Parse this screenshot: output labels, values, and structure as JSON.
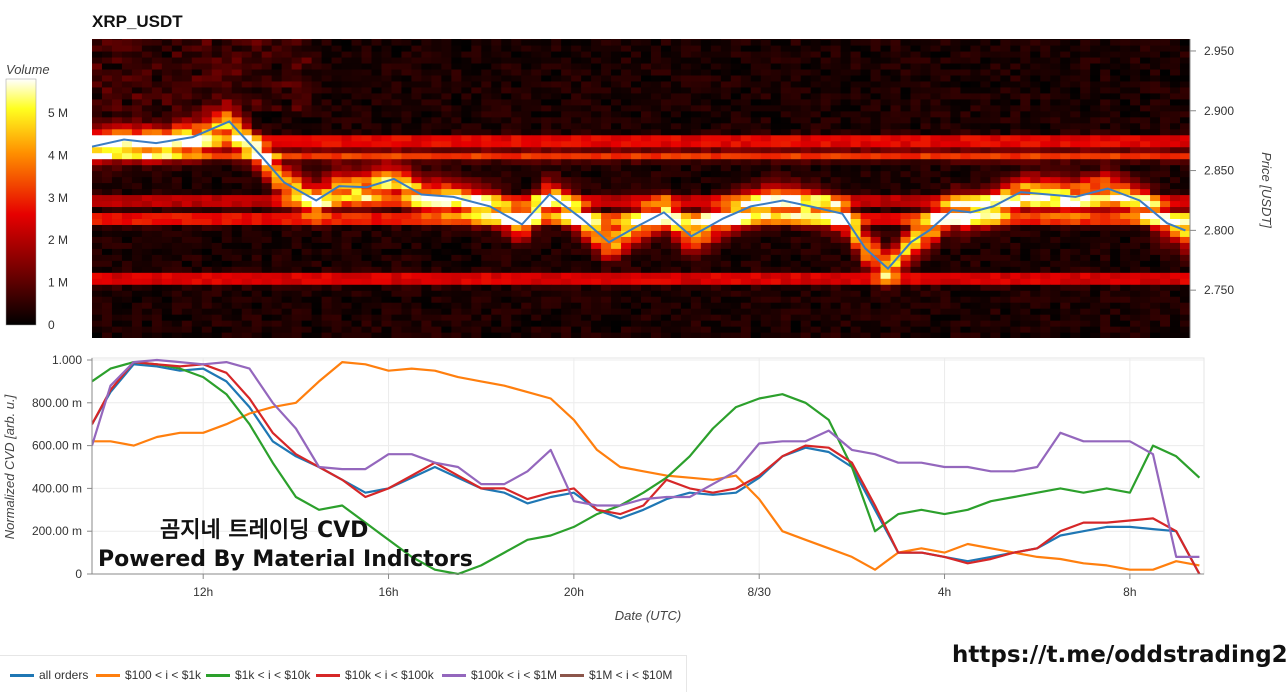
{
  "title": "XRP_USDT",
  "colorbar": {
    "label": "Volume",
    "ticks": [
      "5 M",
      "4 M",
      "3 M",
      "2 M",
      "1 M",
      "0"
    ]
  },
  "price_axis": {
    "label": "Price [USDT]",
    "ticks": [
      "2.950",
      "2.900",
      "2.850",
      "2.800",
      "2.750"
    ]
  },
  "cvd_axis": {
    "label": "Normalized CVD [arb. u.]",
    "ticks": [
      "1.000",
      "800.00 m",
      "600.00 m",
      "400.00 m",
      "200.00 m",
      "0"
    ]
  },
  "x_axis": {
    "label": "Date (UTC)",
    "ticks": [
      "12h",
      "16h",
      "20h",
      "8/30",
      "4h",
      "8h"
    ]
  },
  "overlay": {
    "line1": "곰지네 트레이딩 CVD",
    "line2": "Powered By Material Indictors"
  },
  "link": "https://t.me/oddstrading2",
  "legend": [
    {
      "label": "all orders",
      "color": "#1f77b4"
    },
    {
      "label": "$100 < i < $1k",
      "color": "#ff7f0e"
    },
    {
      "label": "$1k < i < $10k",
      "color": "#2ca02c"
    },
    {
      "label": "$10k < i < $100k",
      "color": "#d62728"
    },
    {
      "label": "$100k < i < $1M",
      "color": "#9467bd"
    },
    {
      "label": "$1M < i < $10M",
      "color": "#8c564b"
    }
  ],
  "chart_data": [
    {
      "type": "heatmap",
      "title": "XRP_USDT",
      "ylabel": "Price [USDT]",
      "xlabel": "",
      "ylim": [
        2.71,
        2.96
      ],
      "colorbar_label": "Volume",
      "colorbar_range": [
        0,
        5800000
      ],
      "series": [
        {
          "name": "price",
          "color": "#3b7dc4",
          "x_hours": [
            9.6,
            10.3,
            11.0,
            11.8,
            12.6,
            13.3,
            13.8,
            14.5,
            15.0,
            15.6,
            16.2,
            16.8,
            17.5,
            18.3,
            19.0,
            19.6,
            20.3,
            20.9,
            21.5,
            22.1,
            22.7,
            23.4,
            24.0,
            24.7,
            25.3,
            26.0,
            26.5,
            27.0,
            27.5,
            27.9,
            28.4,
            28.8,
            29.3,
            29.9,
            30.5,
            31.1,
            31.8,
            32.5,
            33.1,
            33.5
          ],
          "y": [
            2.87,
            2.876,
            2.873,
            2.878,
            2.891,
            2.862,
            2.84,
            2.825,
            2.837,
            2.836,
            2.843,
            2.83,
            2.828,
            2.82,
            2.805,
            2.83,
            2.81,
            2.79,
            2.803,
            2.815,
            2.795,
            2.81,
            2.82,
            2.825,
            2.82,
            2.814,
            2.785,
            2.768,
            2.79,
            2.8,
            2.817,
            2.815,
            2.82,
            2.832,
            2.83,
            2.828,
            2.835,
            2.825,
            2.806,
            2.8
          ]
        }
      ],
      "bands": [
        {
          "price": 2.76,
          "volume": 3200000
        },
        {
          "price": 2.81,
          "volume": 3600000
        },
        {
          "price": 2.825,
          "volume": 2600000
        },
        {
          "price": 2.875,
          "volume": 3400000
        },
        {
          "price": 2.863,
          "volume": 2900000
        }
      ]
    },
    {
      "type": "line",
      "xlabel": "Date (UTC)",
      "ylabel": "Normalized CVD [arb. u.]",
      "ylim": [
        0,
        1.0
      ],
      "x_ticks": [
        "12h",
        "16h",
        "20h",
        "8/30",
        "4h",
        "8h"
      ],
      "x_hours": [
        9.6,
        10.0,
        10.5,
        11.0,
        11.5,
        12.0,
        12.5,
        13.0,
        13.5,
        14.0,
        14.5,
        15.0,
        15.5,
        16.0,
        16.5,
        17.0,
        17.5,
        18.0,
        18.5,
        19.0,
        19.5,
        20.0,
        20.5,
        21.0,
        21.5,
        22.0,
        22.5,
        23.0,
        23.5,
        24.0,
        24.5,
        25.0,
        25.5,
        26.0,
        26.5,
        27.0,
        27.5,
        28.0,
        28.5,
        29.0,
        29.5,
        30.0,
        30.5,
        31.0,
        31.5,
        32.0,
        32.5,
        33.0,
        33.5
      ],
      "series": [
        {
          "name": "all orders",
          "color": "#1f77b4",
          "values": [
            0.7,
            0.85,
            0.98,
            0.97,
            0.95,
            0.96,
            0.9,
            0.78,
            0.62,
            0.55,
            0.5,
            0.44,
            0.38,
            0.4,
            0.45,
            0.5,
            0.45,
            0.4,
            0.38,
            0.33,
            0.36,
            0.38,
            0.3,
            0.26,
            0.3,
            0.35,
            0.38,
            0.37,
            0.38,
            0.45,
            0.55,
            0.59,
            0.57,
            0.5,
            0.3,
            0.1,
            0.1,
            0.08,
            0.06,
            0.08,
            0.1,
            0.12,
            0.18,
            0.2,
            0.22,
            0.22,
            0.21,
            0.2,
            0.0
          ]
        },
        {
          "name": "$100 < i < $1k",
          "color": "#ff7f0e",
          "values": [
            0.62,
            0.62,
            0.6,
            0.64,
            0.66,
            0.66,
            0.7,
            0.75,
            0.78,
            0.8,
            0.9,
            0.99,
            0.98,
            0.95,
            0.96,
            0.95,
            0.92,
            0.9,
            0.88,
            0.85,
            0.82,
            0.72,
            0.58,
            0.5,
            0.48,
            0.46,
            0.45,
            0.44,
            0.46,
            0.35,
            0.2,
            0.16,
            0.12,
            0.08,
            0.02,
            0.1,
            0.12,
            0.1,
            0.14,
            0.12,
            0.1,
            0.08,
            0.07,
            0.05,
            0.04,
            0.02,
            0.02,
            0.06,
            0.04
          ]
        },
        {
          "name": "$1k < i < $10k",
          "color": "#2ca02c",
          "values": [
            0.9,
            0.96,
            0.99,
            0.98,
            0.96,
            0.92,
            0.84,
            0.7,
            0.52,
            0.36,
            0.3,
            0.32,
            0.24,
            0.16,
            0.08,
            0.02,
            0.0,
            0.04,
            0.1,
            0.16,
            0.18,
            0.22,
            0.28,
            0.32,
            0.38,
            0.45,
            0.55,
            0.68,
            0.78,
            0.82,
            0.84,
            0.8,
            0.72,
            0.5,
            0.2,
            0.28,
            0.3,
            0.28,
            0.3,
            0.34,
            0.36,
            0.38,
            0.4,
            0.38,
            0.4,
            0.38,
            0.6,
            0.55,
            0.45
          ]
        },
        {
          "name": "$10k < i < $100k",
          "color": "#d62728",
          "values": [
            0.7,
            0.86,
            0.99,
            0.98,
            0.97,
            0.98,
            0.94,
            0.82,
            0.66,
            0.56,
            0.5,
            0.44,
            0.36,
            0.4,
            0.46,
            0.52,
            0.46,
            0.4,
            0.4,
            0.35,
            0.38,
            0.4,
            0.3,
            0.28,
            0.32,
            0.44,
            0.4,
            0.38,
            0.4,
            0.46,
            0.55,
            0.6,
            0.59,
            0.52,
            0.32,
            0.1,
            0.1,
            0.08,
            0.05,
            0.07,
            0.1,
            0.12,
            0.2,
            0.24,
            0.24,
            0.25,
            0.26,
            0.2,
            0.0
          ]
        },
        {
          "name": "$100k < i < $1M",
          "color": "#9467bd",
          "values": [
            0.6,
            0.88,
            0.99,
            1.0,
            0.99,
            0.98,
            0.99,
            0.96,
            0.8,
            0.68,
            0.5,
            0.49,
            0.49,
            0.56,
            0.56,
            0.52,
            0.5,
            0.42,
            0.42,
            0.48,
            0.58,
            0.34,
            0.32,
            0.32,
            0.35,
            0.36,
            0.36,
            0.42,
            0.48,
            0.61,
            0.62,
            0.62,
            0.67,
            0.58,
            0.56,
            0.52,
            0.52,
            0.5,
            0.5,
            0.48,
            0.48,
            0.5,
            0.66,
            0.62,
            0.62,
            0.62,
            0.56,
            0.08,
            0.08
          ]
        },
        {
          "name": "$1M < i < $10M",
          "color": "#8c564b",
          "values": []
        }
      ]
    }
  ]
}
